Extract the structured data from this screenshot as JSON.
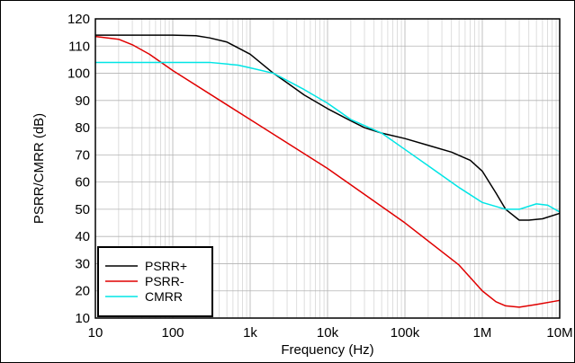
{
  "chart_data": {
    "type": "line",
    "title": "",
    "xlabel": "Frequency (Hz)",
    "ylabel": "PSRR/CMRR (dB)",
    "xscale": "log",
    "xlim": [
      10,
      10000000
    ],
    "ylim": [
      10,
      120
    ],
    "grid": true,
    "legend_position": "bottom-left",
    "x_tick_values": [
      10,
      100,
      1000,
      10000,
      100000,
      1000000,
      10000000
    ],
    "x_tick_labels": [
      "10",
      "100",
      "1k",
      "10k",
      "100k",
      "1M",
      "10M"
    ],
    "y_tick_values": [
      10,
      20,
      30,
      40,
      50,
      60,
      70,
      80,
      90,
      100,
      110,
      120
    ],
    "y_tick_labels": [
      "10",
      "20",
      "30",
      "40",
      "50",
      "60",
      "70",
      "80",
      "90",
      "100",
      "110",
      "120"
    ],
    "series": [
      {
        "name": "PSRR+",
        "color": "#000000",
        "x": [
          10,
          30,
          100,
          200,
          300,
          500,
          1000,
          2000,
          3000,
          5000,
          10000,
          20000,
          30000,
          50000,
          100000,
          200000,
          400000,
          700000,
          1000000,
          1500000,
          2000000,
          3000000,
          4000000,
          6000000,
          10000000
        ],
        "y": [
          114,
          114,
          114,
          113.8,
          113,
          111.5,
          107,
          100,
          96.5,
          92,
          87,
          82.5,
          80,
          78,
          76,
          73.5,
          71,
          68,
          64,
          56,
          50,
          46,
          46,
          46.5,
          48.5
        ]
      },
      {
        "name": "PSRR-",
        "color": "#e00000",
        "x": [
          10,
          20,
          30,
          50,
          100,
          1000,
          10000,
          100000,
          500000,
          1000000,
          1500000,
          2000000,
          3000000,
          5000000,
          10000000
        ],
        "y": [
          113.5,
          112.5,
          110.5,
          107,
          101,
          83,
          65,
          45,
          29.5,
          20,
          16,
          14.5,
          14,
          15,
          16.5
        ]
      },
      {
        "name": "CMRR",
        "color": "#00e5e5",
        "x": [
          10,
          100,
          300,
          700,
          1000,
          2000,
          5000,
          10000,
          20000,
          50000,
          100000,
          200000,
          500000,
          1000000,
          2000000,
          3000000,
          5000000,
          7000000,
          10000000
        ],
        "y": [
          104,
          104,
          104,
          103,
          102,
          100,
          94,
          89,
          83,
          78,
          72,
          66,
          58,
          52.5,
          50,
          50,
          52,
          51.5,
          49
        ]
      }
    ]
  }
}
